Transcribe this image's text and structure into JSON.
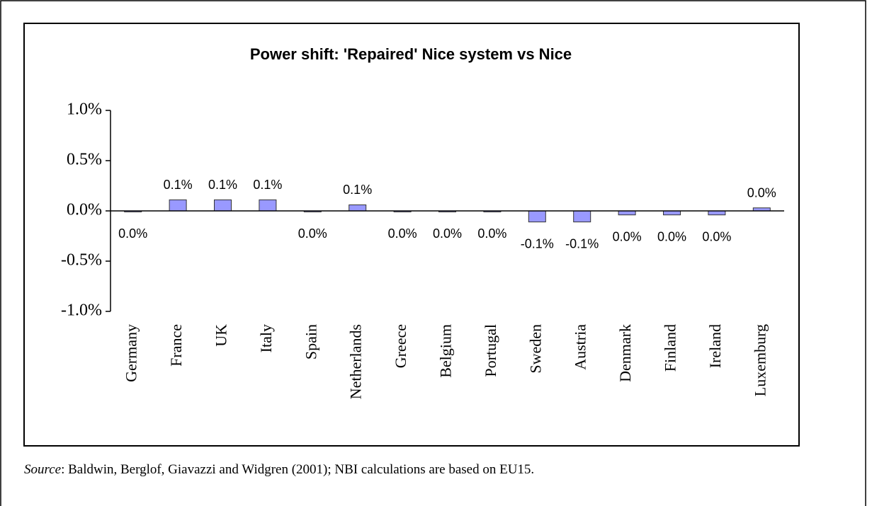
{
  "chart_data": {
    "type": "bar",
    "title": "Power shift: 'Repaired' Nice system vs Nice",
    "categories": [
      "Germany",
      "France",
      "UK",
      "Italy",
      "Spain",
      "Netherlands",
      "Greece",
      "Belgium",
      "Portugal",
      "Sweden",
      "Austria",
      "Denmark",
      "Finland",
      "Ireland",
      "Luxemburg"
    ],
    "values": [
      -0.01,
      0.11,
      0.11,
      0.11,
      -0.01,
      0.06,
      -0.01,
      -0.01,
      -0.01,
      -0.11,
      -0.11,
      -0.04,
      -0.04,
      -0.04,
      0.03
    ],
    "value_labels": [
      "0.0%",
      "0.1%",
      "0.1%",
      "0.1%",
      "0.0%",
      "0.1%",
      "0.0%",
      "0.0%",
      "0.0%",
      "-0.1%",
      "-0.1%",
      "0.0%",
      "0.0%",
      "0.0%",
      "0.0%"
    ],
    "color": "#9999ff",
    "ylim": [
      -1.0,
      1.0
    ],
    "yticks": [
      {
        "value": -1.0,
        "label": "-1.0%"
      },
      {
        "value": -0.5,
        "label": "-0.5%"
      },
      {
        "value": 0.0,
        "label": "0.0%"
      },
      {
        "value": 0.5,
        "label": "0.5%"
      },
      {
        "value": 1.0,
        "label": "1.0%"
      }
    ],
    "grid": false
  },
  "footnote": {
    "label": "Source",
    "text": ": Baldwin, Berglof, Giavazzi and Widgren (2001); NBI calculations are based on EU15."
  }
}
